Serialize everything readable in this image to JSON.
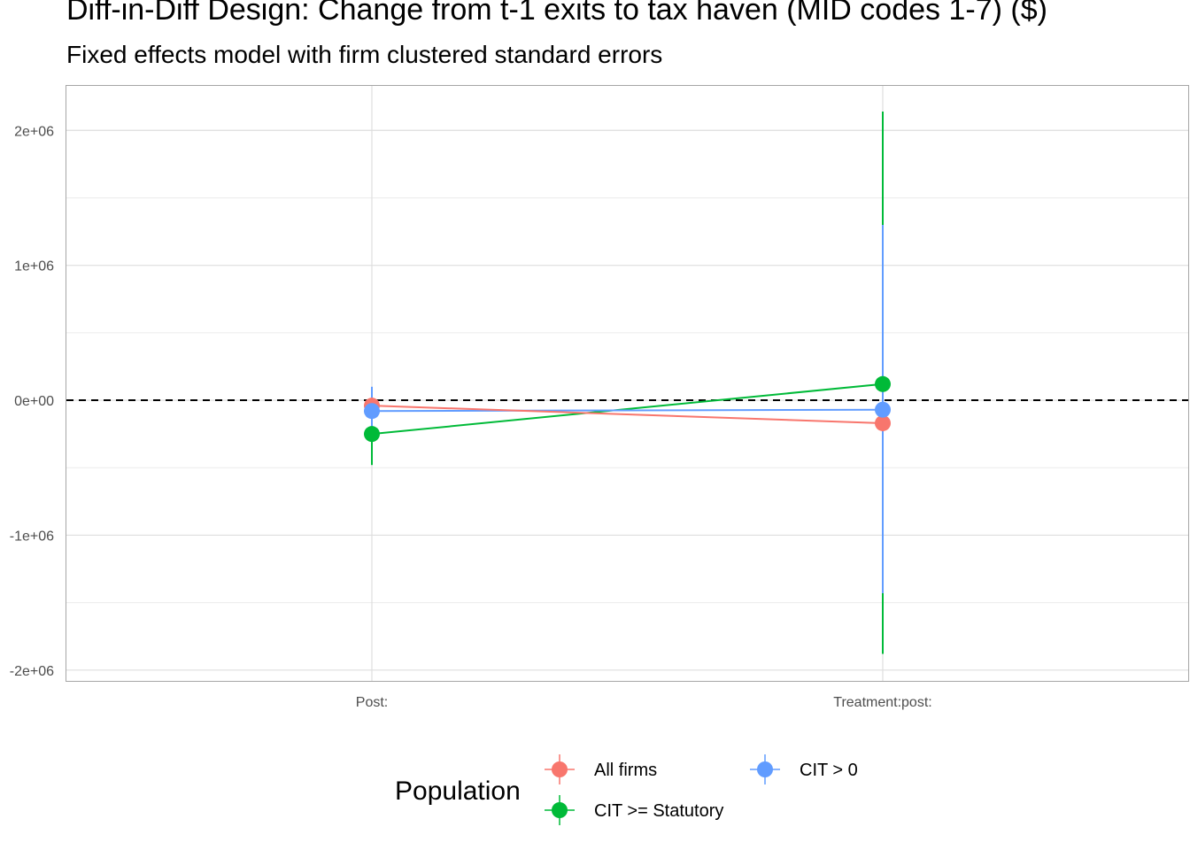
{
  "chart_data": {
    "type": "scatter",
    "title": "Diff-in-Diff Design: Change from t-1 exits to tax haven (MID codes 1-7)  ($)",
    "subtitle": "Fixed effects model with firm clustered standard errors",
    "categories": [
      "Post:",
      "Treatment:post:"
    ],
    "y_ticks": [
      -2000000,
      -1000000,
      0,
      1000000,
      2000000
    ],
    "y_tick_labels": [
      "-2e+06",
      "-1e+06",
      "0e+00",
      "1e+06",
      "2e+06"
    ],
    "ylim": [
      -2080000,
      2330000
    ],
    "reference_line": 0,
    "grid": true,
    "legend": {
      "title": "Population",
      "position": "bottom"
    },
    "series": [
      {
        "name": "All firms",
        "color": "#F8766D",
        "values": [
          -40000,
          -170000
        ],
        "lower": [
          -100000,
          -230000
        ],
        "upper": [
          20000,
          -110000
        ]
      },
      {
        "name": "CIT >= Statutory",
        "color": "#00BA38",
        "values": [
          -250000,
          120000
        ],
        "lower": [
          -480000,
          -1880000
        ],
        "upper": [
          -20000,
          2140000
        ]
      },
      {
        "name": "CIT > 0",
        "color": "#619CFF",
        "values": [
          -80000,
          -70000
        ],
        "lower": [
          -270000,
          -1430000
        ],
        "upper": [
          100000,
          1300000
        ]
      }
    ]
  }
}
